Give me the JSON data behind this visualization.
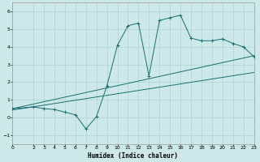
{
  "xlabel": "Humidex (Indice chaleur)",
  "bg_color": "#cce8e8",
  "grid_color": "#aacccc",
  "line_color": "#1a6e6e",
  "xlim": [
    0,
    23
  ],
  "ylim": [
    -1.5,
    6.5
  ],
  "xticks": [
    0,
    2,
    3,
    4,
    5,
    6,
    7,
    8,
    9,
    10,
    11,
    12,
    13,
    14,
    15,
    16,
    17,
    18,
    19,
    20,
    21,
    22,
    23
  ],
  "yticks": [
    -1,
    0,
    1,
    2,
    3,
    4,
    5,
    6
  ],
  "curve1_x": [
    0,
    2,
    3,
    4,
    5,
    6,
    7,
    8,
    9,
    10,
    11,
    12,
    13,
    14,
    15,
    16,
    17,
    18,
    19,
    20,
    21,
    22,
    23
  ],
  "curve1_y": [
    0.5,
    0.6,
    0.5,
    0.45,
    0.3,
    0.15,
    -0.65,
    0.05,
    1.8,
    4.1,
    5.2,
    5.35,
    2.35,
    5.5,
    5.65,
    5.8,
    4.5,
    4.35,
    4.35,
    4.45,
    4.2,
    4.0,
    3.45
  ],
  "line1_x": [
    0,
    23
  ],
  "line1_y": [
    0.5,
    3.5
  ],
  "line2_x": [
    0,
    23
  ],
  "line2_y": [
    0.42,
    2.55
  ]
}
